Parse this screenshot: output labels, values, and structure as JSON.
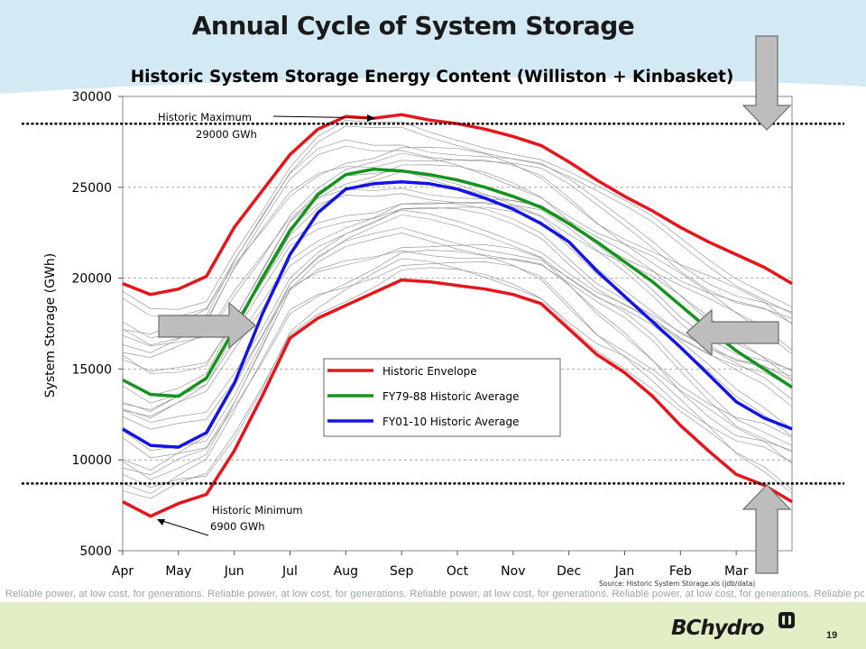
{
  "slide": {
    "title": "Annual Cycle of System Storage",
    "tagline": "Reliable power, at low cost, for generations. Reliable power, at low cost, for generations. Reliable power, at low cost, for generations. Reliable power, at low cost, for generations. Reliable power, at low cost, for generations.",
    "page_number": "19",
    "logo_text": "BChydro",
    "colors": {
      "top_band": "#d3e9f3",
      "bottom_band": "#e1eec6",
      "arrow_fill": "#bdbdbd",
      "arrow_stroke": "#6e6e6e"
    }
  },
  "chart_data": {
    "type": "line",
    "title": "Historic System Storage Energy Content (Williston + Kinbasket)",
    "ylabel": "System Storage (GWh)",
    "xlabel": "",
    "ylim": [
      5000,
      30000
    ],
    "yticks": [
      "5000",
      "10000",
      "15000",
      "20000",
      "25000",
      "30000"
    ],
    "months": [
      "Apr",
      "May",
      "Jun",
      "Jul",
      "Aug",
      "Sep",
      "Oct",
      "Nov",
      "Dec",
      "Jan",
      "Feb",
      "Mar"
    ],
    "grid": "horizontal dashed",
    "legend_position": "center",
    "source_note": "Source: Historic System Storage.xls (jdb/data)",
    "series": [
      {
        "name": "Historic Envelope",
        "color": "#e8141c",
        "x": [
          0,
          0.5,
          1,
          1.5,
          2,
          2.5,
          3,
          3.5,
          4,
          4.5,
          5,
          5.5,
          6,
          6.5,
          7,
          7.5,
          8,
          8.5,
          9,
          9.5,
          10,
          10.5,
          11,
          11.5,
          12
        ],
        "upper": [
          19700,
          19100,
          19400,
          20100,
          22800,
          24800,
          26800,
          28200,
          28900,
          28800,
          29000,
          28700,
          28500,
          28200,
          27800,
          27300,
          26400,
          25400,
          24500,
          23700,
          22800,
          22000,
          21300,
          20600,
          19700
        ],
        "lower": [
          7700,
          6900,
          7600,
          8100,
          10500,
          13500,
          16700,
          17800,
          18500,
          19200,
          19900,
          19800,
          19600,
          19400,
          19100,
          18600,
          17200,
          15800,
          14800,
          13500,
          11900,
          10500,
          9200,
          8600,
          7700
        ]
      },
      {
        "name": "FY79-88 Historic Average",
        "color": "#15931d",
        "x": [
          0,
          0.5,
          1,
          1.5,
          2,
          2.5,
          3,
          3.5,
          4,
          4.5,
          5,
          5.5,
          6,
          6.5,
          7,
          7.5,
          8,
          8.5,
          9,
          9.5,
          10,
          10.5,
          11,
          11.5,
          12
        ],
        "values": [
          14400,
          13600,
          13500,
          14500,
          17200,
          20000,
          22600,
          24600,
          25700,
          26000,
          25900,
          25700,
          25400,
          25000,
          24500,
          23900,
          23000,
          22000,
          20900,
          19800,
          18500,
          17200,
          16000,
          15000,
          14000
        ]
      },
      {
        "name": "FY01-10 Historic Average",
        "color": "#1414e6",
        "x": [
          0,
          0.5,
          1,
          1.5,
          2,
          2.5,
          3,
          3.5,
          4,
          4.5,
          5,
          5.5,
          6,
          6.5,
          7,
          7.5,
          8,
          8.5,
          9,
          9.5,
          10,
          10.5,
          11,
          11.5,
          12
        ],
        "values": [
          11700,
          10800,
          10700,
          11500,
          14200,
          18000,
          21300,
          23600,
          24900,
          25200,
          25300,
          25200,
          24900,
          24400,
          23800,
          23000,
          22000,
          20400,
          19000,
          17600,
          16200,
          14700,
          13200,
          12300,
          11700
        ]
      }
    ],
    "annotations": [
      {
        "label": "Historic Maximum",
        "value_label": "29000 GWh",
        "value": 29000
      },
      {
        "label": "Historic Minimum",
        "value_label": "6900 GWh",
        "value": 6900
      }
    ],
    "reference_lines": [
      28500,
      8700
    ]
  }
}
